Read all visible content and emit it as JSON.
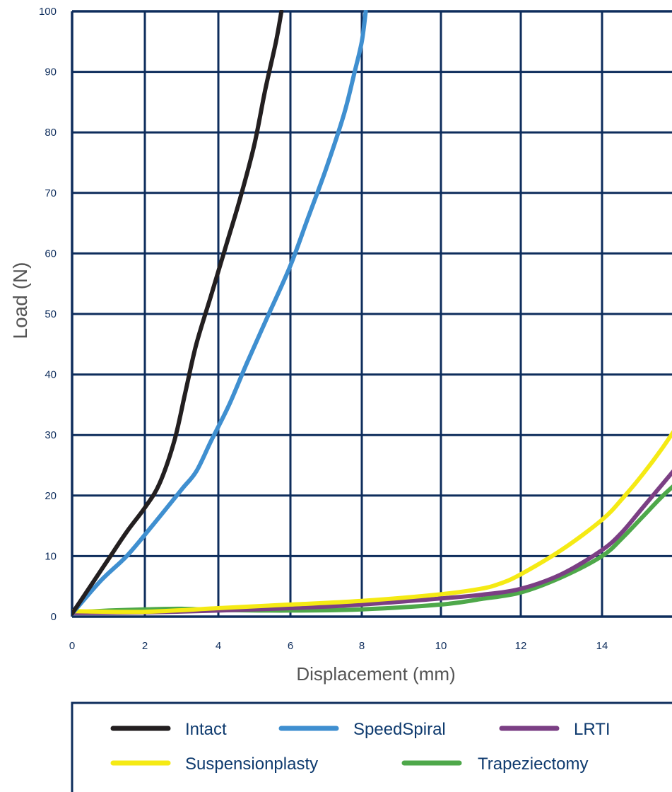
{
  "chart_data": {
    "type": "line",
    "title": "",
    "xlabel": "Displacement (mm)",
    "ylabel": "Load (N)",
    "xlim": [
      0,
      16
    ],
    "ylim": [
      0,
      100
    ],
    "x_ticks": [
      "0",
      "2",
      "4",
      "6",
      "8",
      "10",
      "12",
      "14"
    ],
    "y_ticks": [
      "0",
      "10",
      "20",
      "30",
      "40",
      "50",
      "60",
      "70",
      "80",
      "90",
      "100"
    ],
    "grid": true,
    "legend_position": "bottom",
    "series": [
      {
        "name": "Intact",
        "color": "#231f20",
        "points": [
          [
            0,
            0.5
          ],
          [
            0.5,
            5
          ],
          [
            1,
            9.5
          ],
          [
            1.5,
            14
          ],
          [
            2,
            18
          ],
          [
            2.4,
            22
          ],
          [
            2.8,
            29
          ],
          [
            3.1,
            37
          ],
          [
            3.4,
            45
          ],
          [
            3.8,
            53
          ],
          [
            4.2,
            61
          ],
          [
            4.6,
            69
          ],
          [
            5,
            78
          ],
          [
            5.3,
            87
          ],
          [
            5.6,
            95
          ],
          [
            5.75,
            100
          ]
        ]
      },
      {
        "name": "SpeedSpiral",
        "color": "#3f8fd0",
        "points": [
          [
            0,
            0.5
          ],
          [
            0.8,
            6
          ],
          [
            1.5,
            10
          ],
          [
            2.2,
            15
          ],
          [
            3,
            21
          ],
          [
            3.4,
            24
          ],
          [
            3.8,
            29
          ],
          [
            4.3,
            35
          ],
          [
            4.8,
            42
          ],
          [
            5.4,
            50
          ],
          [
            6,
            58
          ],
          [
            6.5,
            66
          ],
          [
            7,
            74
          ],
          [
            7.5,
            83
          ],
          [
            7.8,
            90
          ],
          [
            8,
            95
          ],
          [
            8.1,
            100
          ]
        ]
      },
      {
        "name": "LRTI",
        "color": "#7b3f84",
        "points": [
          [
            0,
            0.6
          ],
          [
            2,
            0.7
          ],
          [
            4,
            1.0
          ],
          [
            6,
            1.4
          ],
          [
            8,
            2.0
          ],
          [
            10,
            3.0
          ],
          [
            11,
            3.6
          ],
          [
            12,
            4.6
          ],
          [
            13,
            7.0
          ],
          [
            14,
            11
          ],
          [
            14.5,
            14
          ],
          [
            15,
            18
          ],
          [
            15.5,
            22
          ],
          [
            16,
            26
          ]
        ]
      },
      {
        "name": "Suspensionplasty",
        "color": "#f5ea14",
        "points": [
          [
            0,
            0.9
          ],
          [
            2,
            0.8
          ],
          [
            4,
            1.4
          ],
          [
            6,
            2.0
          ],
          [
            8,
            2.6
          ],
          [
            10,
            3.7
          ],
          [
            11,
            4.6
          ],
          [
            11.5,
            5.5
          ],
          [
            12,
            7.0
          ],
          [
            13,
            11
          ],
          [
            14,
            16
          ],
          [
            14.5,
            19.5
          ],
          [
            15,
            23.5
          ],
          [
            15.5,
            28
          ],
          [
            16,
            33
          ]
        ]
      },
      {
        "name": "Trapeziectomy",
        "color": "#4ea84a",
        "points": [
          [
            0,
            0.7
          ],
          [
            1,
            1.0
          ],
          [
            2,
            1.2
          ],
          [
            3,
            1.3
          ],
          [
            4,
            1.1
          ],
          [
            6,
            1.0
          ],
          [
            8,
            1.2
          ],
          [
            10,
            2.0
          ],
          [
            11,
            2.9
          ],
          [
            12,
            4.0
          ],
          [
            13,
            6.5
          ],
          [
            14,
            10
          ],
          [
            14.5,
            13
          ],
          [
            15,
            16.5
          ],
          [
            15.5,
            20
          ],
          [
            16,
            23
          ]
        ]
      }
    ]
  }
}
